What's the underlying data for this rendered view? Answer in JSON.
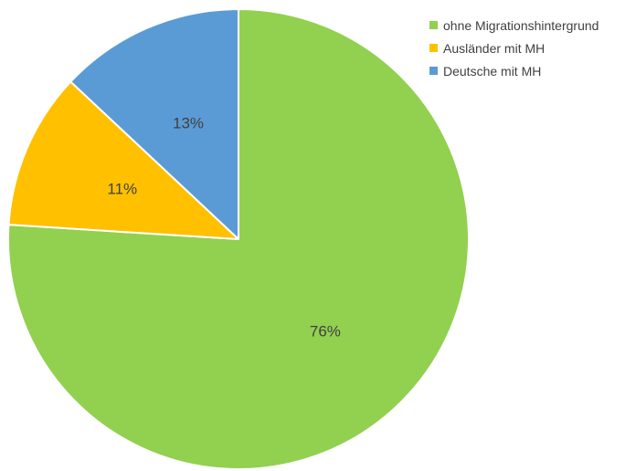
{
  "chart_data": {
    "type": "pie",
    "start_angle_deg": 0,
    "direction": "clockwise",
    "legend_position": "top-right",
    "slices": [
      {
        "label": "ohne Migrationshintergrund",
        "value": 76,
        "display": "76%",
        "color": "#92d050"
      },
      {
        "label": "Ausländer mit MH",
        "value": 11,
        "display": "11%",
        "color": "#ffc000"
      },
      {
        "label": "Deutsche mit MH",
        "value": 13,
        "display": "13%",
        "color": "#5b9bd5"
      }
    ]
  }
}
